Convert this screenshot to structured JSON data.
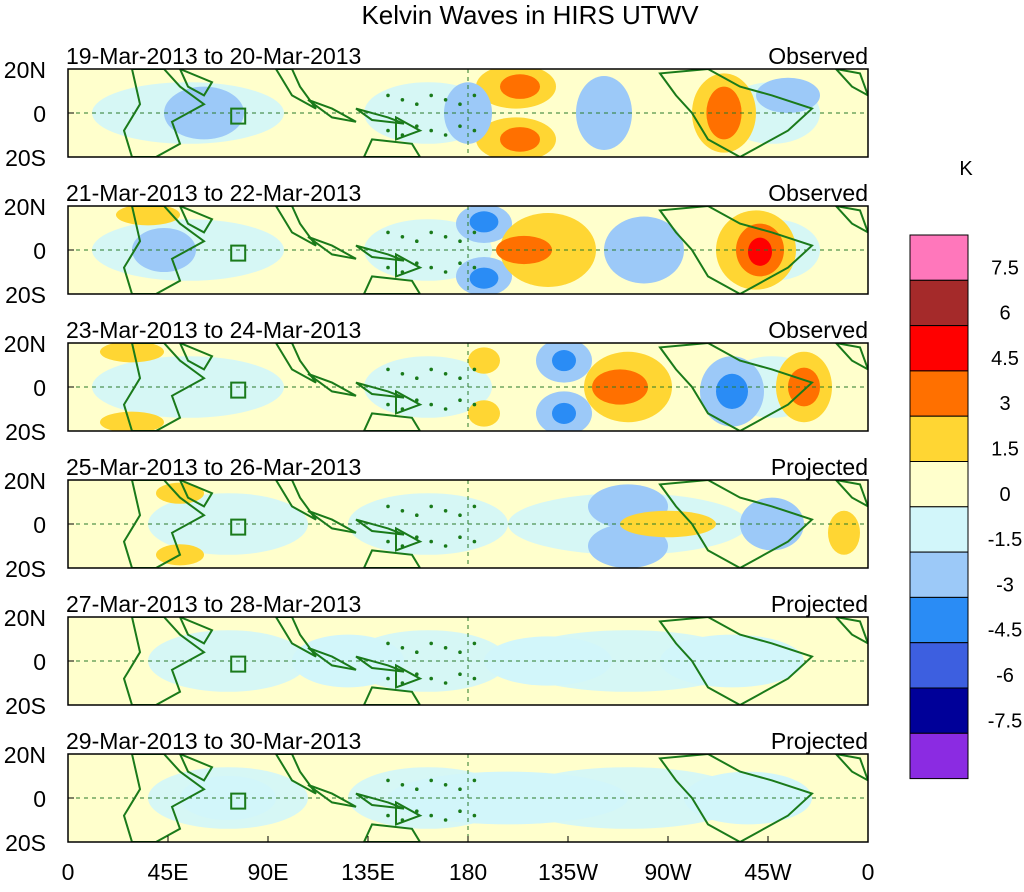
{
  "title": "Kelvin Waves in HIRS UTWV",
  "unit_label": "K",
  "lat_labels": [
    "20N",
    "0",
    "20S"
  ],
  "lon_labels": [
    "0",
    "45E",
    "90E",
    "135E",
    "180",
    "135W",
    "90W",
    "45W",
    "0"
  ],
  "panels": [
    {
      "date_range": "19-Mar-2013 to 20-Mar-2013",
      "status": "Observed"
    },
    {
      "date_range": "21-Mar-2013 to 22-Mar-2013",
      "status": "Observed"
    },
    {
      "date_range": "23-Mar-2013 to 24-Mar-2013",
      "status": "Observed"
    },
    {
      "date_range": "25-Mar-2013 to 26-Mar-2013",
      "status": "Projected"
    },
    {
      "date_range": "27-Mar-2013 to 28-Mar-2013",
      "status": "Projected"
    },
    {
      "date_range": "29-Mar-2013 to 30-Mar-2013",
      "status": "Projected"
    }
  ],
  "colorbar": {
    "labels": [
      "7.5",
      "6",
      "4.5",
      "3",
      "1.5",
      "0",
      "-1.5",
      "-3",
      "-4.5",
      "-6",
      "-7.5"
    ],
    "colors": [
      "#ff77bb",
      "#a52a2a",
      "#ff0000",
      "#ff7000",
      "#ffd633",
      "#ffffcc",
      "#d2f6fa",
      "#9cc9f8",
      "#2a8cf5",
      "#3d5fe0",
      "#000099",
      "#8b2be2"
    ]
  },
  "land_color": "#1a7a1a",
  "colors": {
    "neutral_pos": "#ffffcc",
    "neutral_neg": "#d2f6fa",
    "pos1": "#ffd633",
    "pos2": "#ff7000",
    "pos3": "#ff0000",
    "neg1": "#9cc9f8",
    "neg2": "#2a8cf5"
  }
}
